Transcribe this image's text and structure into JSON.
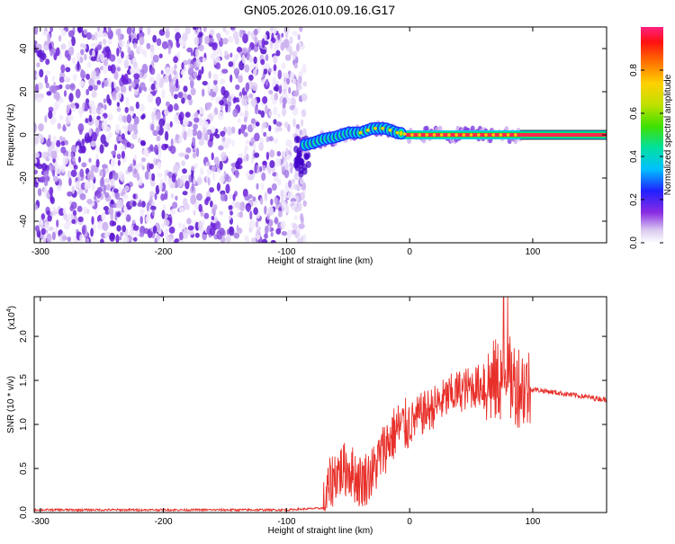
{
  "title": "GN05.2026.010.09.16.G17",
  "chart_data": [
    {
      "type": "heatmap",
      "xlabel": "Height of straight line (km)",
      "ylabel": "Frequency (Hz)",
      "xlim": [
        -305,
        160
      ],
      "ylim": [
        -50,
        50
      ],
      "x_ticks": [
        -300,
        -200,
        -100,
        0,
        100
      ],
      "y_ticks": [
        -40,
        -20,
        0,
        20,
        40
      ],
      "noise_region_x": [
        -305,
        -85
      ],
      "signal_track": {
        "x": [
          -88,
          -80,
          -70,
          -60,
          -50,
          -40,
          -30,
          -20,
          -10,
          0,
          20,
          40,
          60,
          80,
          100,
          160
        ],
        "y": [
          -5,
          -4,
          -2,
          -1,
          1,
          1,
          3,
          3,
          1,
          0,
          0,
          0,
          0,
          0,
          0,
          0
        ]
      },
      "colorbar": {
        "label": "Normalized spectral amplitude",
        "ticks": [
          "0.0",
          "0.2",
          "0.4",
          "0.6",
          "0.8"
        ],
        "range": [
          0,
          1
        ]
      }
    },
    {
      "type": "line",
      "xlabel": "Height of straight line (km)",
      "ylabel": "SNR (10 * v/v)",
      "y_multiplier": "(x10",
      "y_multiplier_exp": "4",
      "y_multiplier_close": ")",
      "xlim": [
        -305,
        160
      ],
      "ylim": [
        0,
        2.45
      ],
      "x_ticks": [
        -300,
        -200,
        -100,
        0,
        100
      ],
      "y_ticks": [
        "0.0",
        "0.5",
        "1.0",
        "1.5",
        "2.0"
      ],
      "color": "#e8302a",
      "series": [
        {
          "x": [
            -305,
            -200,
            -100,
            -70,
            -65,
            -60,
            -50,
            -40,
            -30,
            -20,
            -10,
            0,
            10,
            20,
            30,
            40,
            50,
            60,
            70,
            78,
            82,
            90,
            95,
            100,
            110,
            120,
            130,
            140,
            150,
            160
          ],
          "values": [
            0.03,
            0.03,
            0.03,
            0.05,
            0.3,
            0.45,
            0.5,
            0.35,
            0.45,
            0.75,
            0.95,
            1.0,
            1.12,
            1.2,
            1.3,
            1.38,
            1.42,
            1.45,
            1.48,
            1.55,
            1.5,
            1.45,
            1.42,
            1.4,
            1.38,
            1.36,
            1.34,
            1.32,
            1.3,
            1.28
          ]
        }
      ]
    }
  ]
}
